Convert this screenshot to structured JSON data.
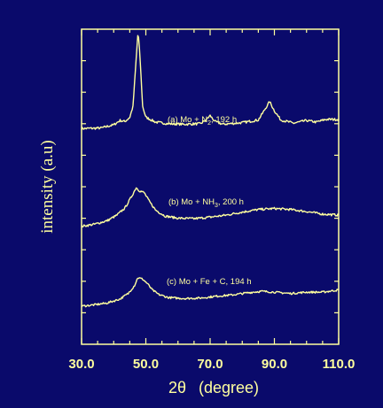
{
  "chart_data": {
    "type": "line",
    "xlabel": "2θ  (degree)",
    "xlabel_main": "2θ",
    "xlabel_unit": "(degree)",
    "ylabel": "intensity (a.u)",
    "xlim": [
      30,
      110
    ],
    "x_ticks": [
      30,
      50,
      70,
      90,
      110
    ],
    "x_tick_labels": [
      "30.0",
      "50.0",
      "70.0",
      "90.0",
      "110.0"
    ],
    "grid": false,
    "y_ticks_labeled": false,
    "colors": {
      "background": "#0a0a6b",
      "foreground": "#ffff9e"
    },
    "series": [
      {
        "name": "(a) Mo + N2, 192 h",
        "label_main": "(a) Mo + N",
        "label_sub": "2",
        "label_rest": ", 192 h",
        "points": [
          [
            30,
            0.55
          ],
          [
            36,
            0.6
          ],
          [
            40,
            0.9
          ],
          [
            42,
            1.3
          ],
          [
            43.5,
            1.2
          ],
          [
            45,
            1.6
          ],
          [
            46,
            2.6
          ],
          [
            47,
            7.0
          ],
          [
            47.6,
            9.6
          ],
          [
            48.2,
            7.0
          ],
          [
            49,
            2.6
          ],
          [
            50,
            1.6
          ],
          [
            53,
            1.15
          ],
          [
            57,
            1.0
          ],
          [
            62,
            0.95
          ],
          [
            67,
            1.0
          ],
          [
            68.5,
            1.3
          ],
          [
            70,
            1.75
          ],
          [
            71.5,
            1.2
          ],
          [
            74,
            0.95
          ],
          [
            80,
            1.1
          ],
          [
            85,
            1.35
          ],
          [
            87,
            2.3
          ],
          [
            88.5,
            3.05
          ],
          [
            90,
            2.2
          ],
          [
            92,
            1.35
          ],
          [
            96,
            1.05
          ],
          [
            100,
            1.3
          ],
          [
            103,
            1.15
          ],
          [
            106,
            1.4
          ],
          [
            110,
            1.4
          ]
        ]
      },
      {
        "name": "(b) Mo + NH3, 200 h",
        "label_main": "(b) Mo + NH",
        "label_sub": "3",
        "label_rest": ", 200 h",
        "points": [
          [
            30,
            0.2
          ],
          [
            34,
            0.4
          ],
          [
            38,
            0.75
          ],
          [
            41,
            1.3
          ],
          [
            43.5,
            2.0
          ],
          [
            45.5,
            3.1
          ],
          [
            47,
            4.0
          ],
          [
            48,
            3.7
          ],
          [
            49.5,
            3.5
          ],
          [
            51,
            2.7
          ],
          [
            53,
            1.8
          ],
          [
            56,
            1.2
          ],
          [
            60,
            1.0
          ],
          [
            65,
            0.95
          ],
          [
            70,
            1.1
          ],
          [
            75,
            1.3
          ],
          [
            80,
            1.6
          ],
          [
            85,
            1.85
          ],
          [
            90,
            1.95
          ],
          [
            95,
            1.85
          ],
          [
            100,
            1.65
          ],
          [
            105,
            1.4
          ],
          [
            110,
            1.3
          ]
        ]
      },
      {
        "name": "(c) Mo + Fe + C, 194 h",
        "label_main": "(c) Mo + Fe + C, 194 h",
        "label_sub": "",
        "label_rest": "",
        "points": [
          [
            30,
            0.3
          ],
          [
            34,
            0.45
          ],
          [
            38,
            0.65
          ],
          [
            42,
            1.1
          ],
          [
            44.5,
            1.7
          ],
          [
            46.5,
            2.6
          ],
          [
            47.5,
            3.45
          ],
          [
            49,
            3.3
          ],
          [
            50.5,
            2.8
          ],
          [
            52,
            2.1
          ],
          [
            54,
            1.6
          ],
          [
            57,
            1.25
          ],
          [
            62,
            1.15
          ],
          [
            67,
            1.2
          ],
          [
            72,
            1.4
          ],
          [
            77,
            1.55
          ],
          [
            82,
            1.8
          ],
          [
            86,
            1.95
          ],
          [
            90,
            1.85
          ],
          [
            95,
            1.7
          ],
          [
            100,
            1.85
          ],
          [
            105,
            1.85
          ],
          [
            110,
            2.1
          ]
        ]
      }
    ]
  }
}
